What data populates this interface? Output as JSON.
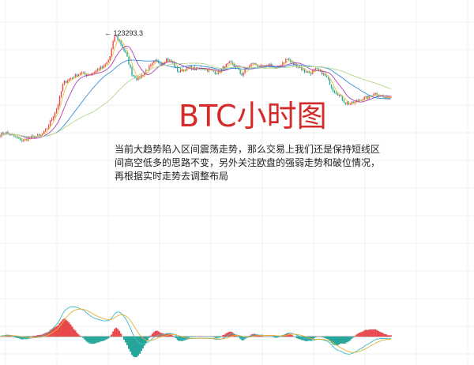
{
  "chart_data": [
    {
      "type": "candlestick",
      "title": "BTC小时图",
      "annotation": {
        "label": "123293.3",
        "value": 123293.3,
        "marker": "arrow-left"
      },
      "grid": true,
      "moving_averages": [
        "short",
        "medium",
        "long",
        "longest"
      ],
      "colors": {
        "up": "#e8474b",
        "down": "#26a69a",
        "ma": [
          "#e9c23a",
          "#b03fb0",
          "#3a8fd8",
          "#b5d68a"
        ]
      },
      "approx_closes": [
        108900,
        109200,
        108700,
        108400,
        108000,
        108400,
        108600,
        108700,
        109500,
        111200,
        112900,
        116300,
        116900,
        117300,
        117800,
        117500,
        117700,
        118300,
        118600,
        119800,
        123293.3,
        122000,
        120300,
        117500,
        116900,
        117800,
        118600,
        119500,
        119200,
        119800,
        119200,
        118000,
        118300,
        118600,
        118300,
        118500,
        118300,
        118000,
        117800,
        118700,
        119200,
        118600,
        117500,
        118600,
        119200,
        118700,
        118500,
        119000,
        118300,
        119200,
        119800,
        119000,
        118700,
        118000,
        117800,
        118300,
        117800,
        116900,
        115200,
        114600,
        113500,
        113300,
        113700,
        114100,
        114200,
        114900,
        114600,
        114100,
        114400
      ]
    },
    {
      "type": "macd",
      "series": [
        "DIF",
        "DEA",
        "histogram"
      ],
      "colors": {
        "dif": "#3cb9c4",
        "dea": "#e3b23c",
        "positive": "#e8474b",
        "negative": "#26a69a"
      }
    }
  ],
  "text": {
    "title": "BTC小时图",
    "paragraph": "当前大趋势陷入区间震荡走势，那么交易上我们还是保持短线区间高空低多的思路不变，另外关注欧盘的强弱走势和破位情况，再根据实时走势去调整布局"
  }
}
